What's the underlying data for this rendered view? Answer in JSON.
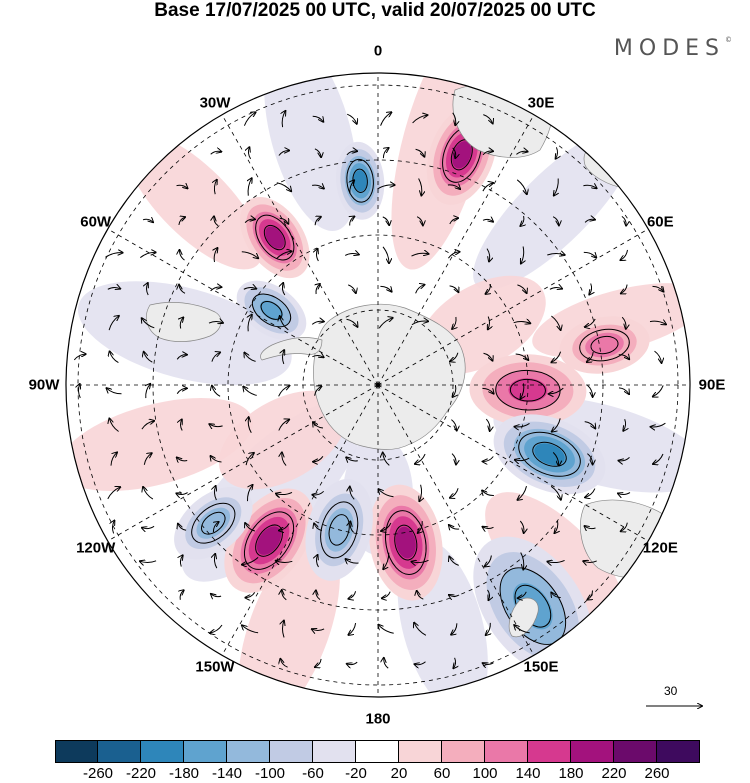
{
  "title": "Base 17/07/2025 00 UTC, valid 20/07/2025 00 UTC",
  "logo": "MODES",
  "logo_mark": "©",
  "projection": "south-polar-stereographic",
  "longitude_labels": [
    "0",
    "30E",
    "60E",
    "90E",
    "120E",
    "150E",
    "180",
    "150W",
    "120W",
    "90W",
    "60W",
    "30W"
  ],
  "wind_scale_label": "30",
  "colorbar": {
    "ticks": [
      "-260",
      "-220",
      "-180",
      "-140",
      "-100",
      "-60",
      "-20",
      "20",
      "60",
      "100",
      "140",
      "180",
      "220",
      "260"
    ],
    "colors": [
      "#0d3a5c",
      "#1a6090",
      "#2e86ba",
      "#5fa3cf",
      "#93b9dc",
      "#c1cbe4",
      "#e2e1ef",
      "#ffffff",
      "#f8d5d7",
      "#f4aebd",
      "#ea78a8",
      "#d6398f",
      "#a3127d",
      "#6b0a6b",
      "#3e0a5e"
    ]
  },
  "anomaly_centers": [
    {
      "sign": "positive",
      "magnitude": 180,
      "lon": 20
    },
    {
      "sign": "negative",
      "magnitude": -200,
      "lon": 355
    },
    {
      "sign": "positive",
      "magnitude": 200,
      "lon": 325
    },
    {
      "sign": "negative",
      "magnitude": -140,
      "lon": 305
    },
    {
      "sign": "positive",
      "magnitude": 160,
      "lon": 92
    },
    {
      "sign": "negative",
      "magnitude": -200,
      "lon": 112
    },
    {
      "sign": "positive",
      "magnitude": 200,
      "lon": 170
    },
    {
      "sign": "negative",
      "magnitude": -140,
      "lon": 145
    },
    {
      "sign": "positive",
      "magnitude": 180,
      "lon": 215
    },
    {
      "sign": "negative",
      "magnitude": -100,
      "lon": 195
    },
    {
      "sign": "negative",
      "magnitude": -120,
      "lon": 230
    },
    {
      "sign": "positive",
      "magnitude": 100,
      "lon": 80
    }
  ]
}
